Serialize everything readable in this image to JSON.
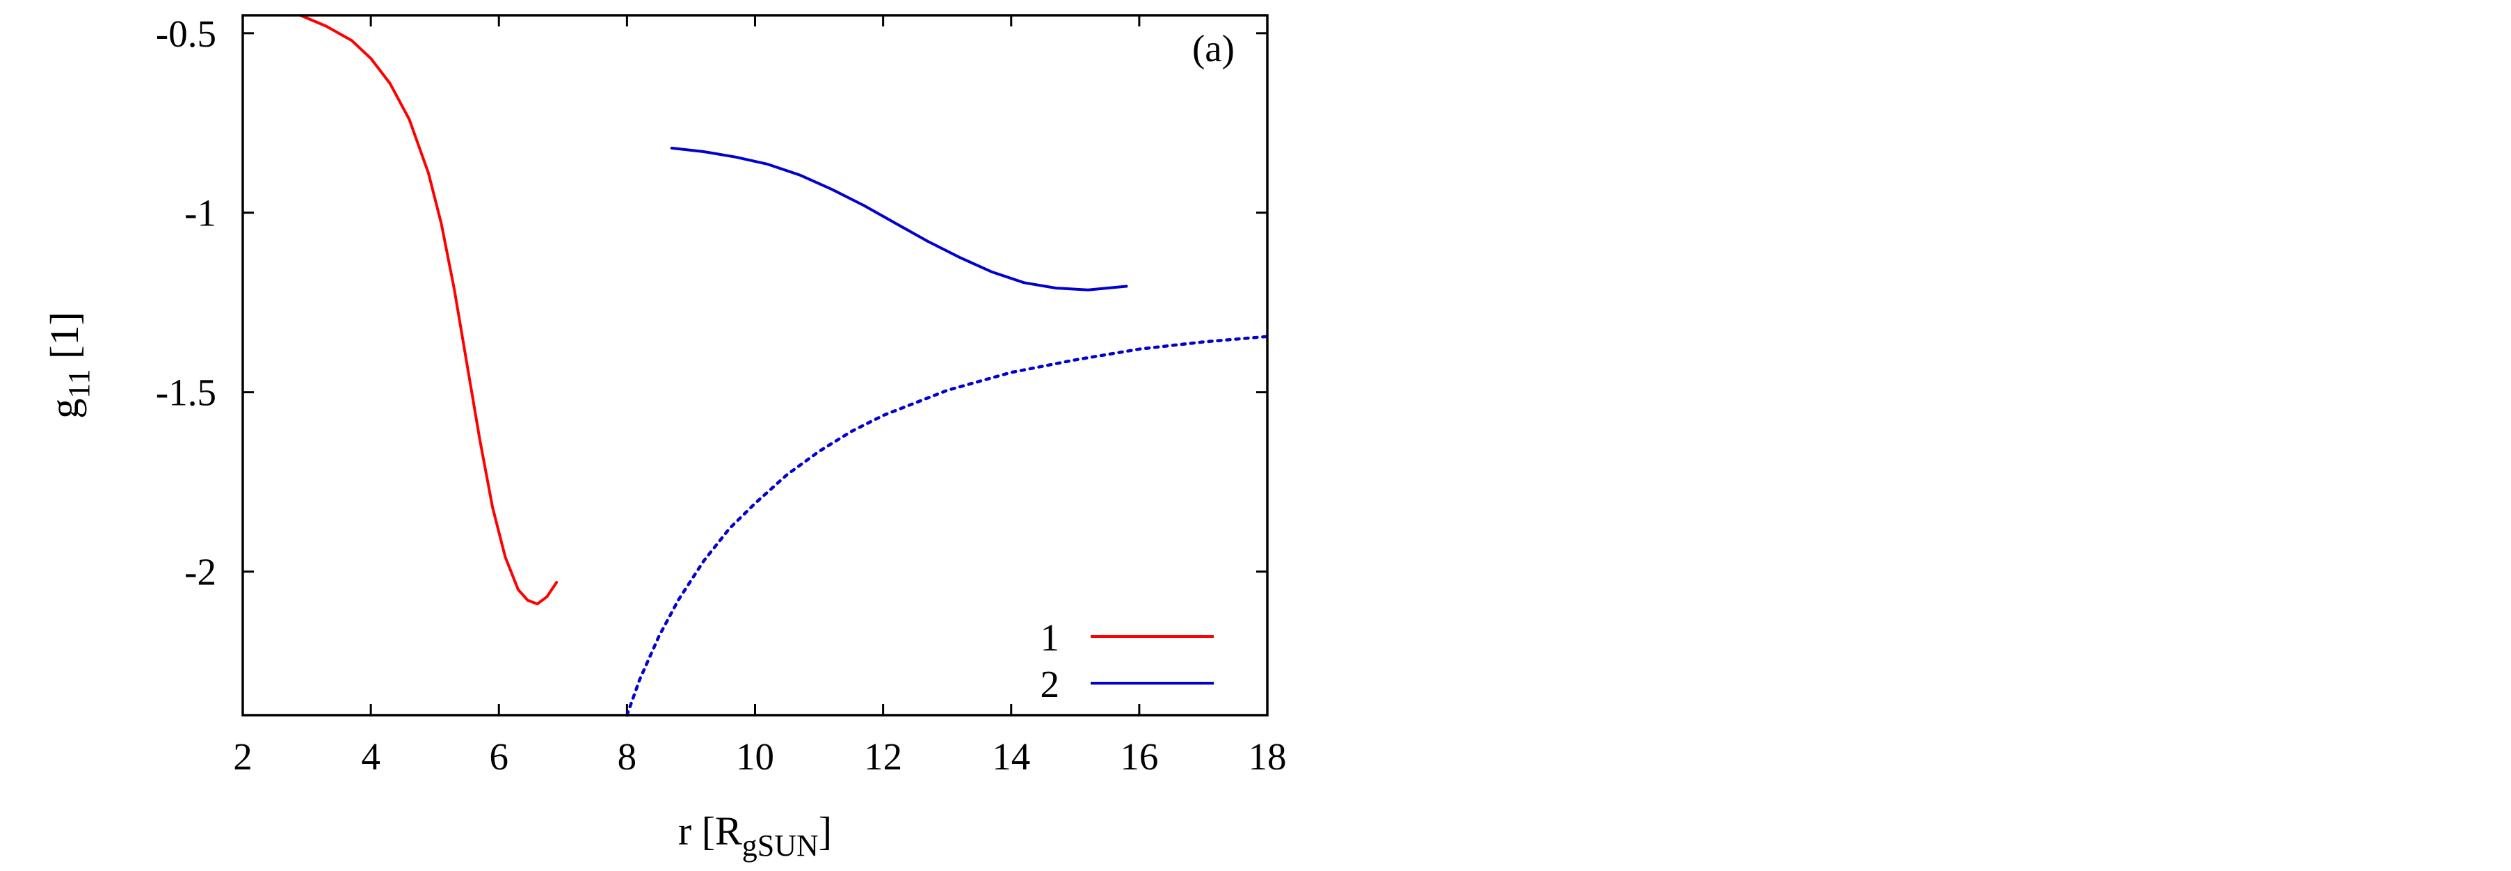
{
  "chart_data": {
    "type": "line",
    "panel_label": "(a)",
    "xlabel": {
      "main": "r [R",
      "sub": "gSUN",
      "close": "]"
    },
    "ylabel": {
      "main": "g",
      "sub": "11",
      "rest": " [1]"
    },
    "xlim": [
      2,
      18
    ],
    "ylim": [
      -2.4,
      -0.45
    ],
    "x_ticks": [
      2,
      4,
      6,
      8,
      10,
      12,
      14,
      16,
      18
    ],
    "y_ticks": [
      {
        "value": -0.5,
        "label": "-0.5"
      },
      {
        "value": -1,
        "label": "-1"
      },
      {
        "value": -1.5,
        "label": "-1.5"
      },
      {
        "value": -2,
        "label": "-2"
      }
    ],
    "grid": false,
    "legend_position": "bottom-right",
    "colors": {
      "series1": "#ff0000",
      "series2": "#0000d0",
      "series2_dotted": "#0000d0"
    },
    "series": [
      {
        "name": "1",
        "style": "solid",
        "color": "#ff0000",
        "x": [
          2.9,
          3.3,
          3.7,
          4.0,
          4.3,
          4.6,
          4.9,
          5.1,
          5.3,
          5.5,
          5.7,
          5.9,
          6.1,
          6.3,
          6.45,
          6.6,
          6.75,
          6.9
        ],
        "y": [
          -0.45,
          -0.48,
          -0.52,
          -0.57,
          -0.64,
          -0.74,
          -0.89,
          -1.03,
          -1.21,
          -1.42,
          -1.63,
          -1.82,
          -1.96,
          -2.05,
          -2.08,
          -2.09,
          -2.07,
          -2.03
        ]
      },
      {
        "name": "2",
        "style": "solid",
        "color": "#0000d0",
        "x": [
          8.7,
          9.2,
          9.7,
          10.2,
          10.7,
          11.2,
          11.7,
          12.2,
          12.7,
          13.2,
          13.7,
          14.2,
          14.7,
          15.2,
          15.5,
          15.8
        ],
        "y": [
          -0.82,
          -0.83,
          -0.845,
          -0.865,
          -0.895,
          -0.935,
          -0.98,
          -1.03,
          -1.08,
          -1.125,
          -1.165,
          -1.195,
          -1.21,
          -1.215,
          -1.21,
          -1.205
        ]
      },
      {
        "name": "",
        "style": "dotted",
        "color": "#0000d0",
        "x": [
          8.0,
          8.2,
          8.5,
          8.8,
          9.2,
          9.6,
          10.0,
          10.5,
          11.0,
          11.5,
          12.0,
          13.0,
          14.0,
          15.0,
          16.0,
          17.0,
          18.0
        ],
        "y": [
          -2.4,
          -2.3,
          -2.18,
          -2.08,
          -1.97,
          -1.88,
          -1.81,
          -1.73,
          -1.665,
          -1.61,
          -1.565,
          -1.495,
          -1.445,
          -1.41,
          -1.38,
          -1.36,
          -1.345
        ]
      }
    ]
  }
}
